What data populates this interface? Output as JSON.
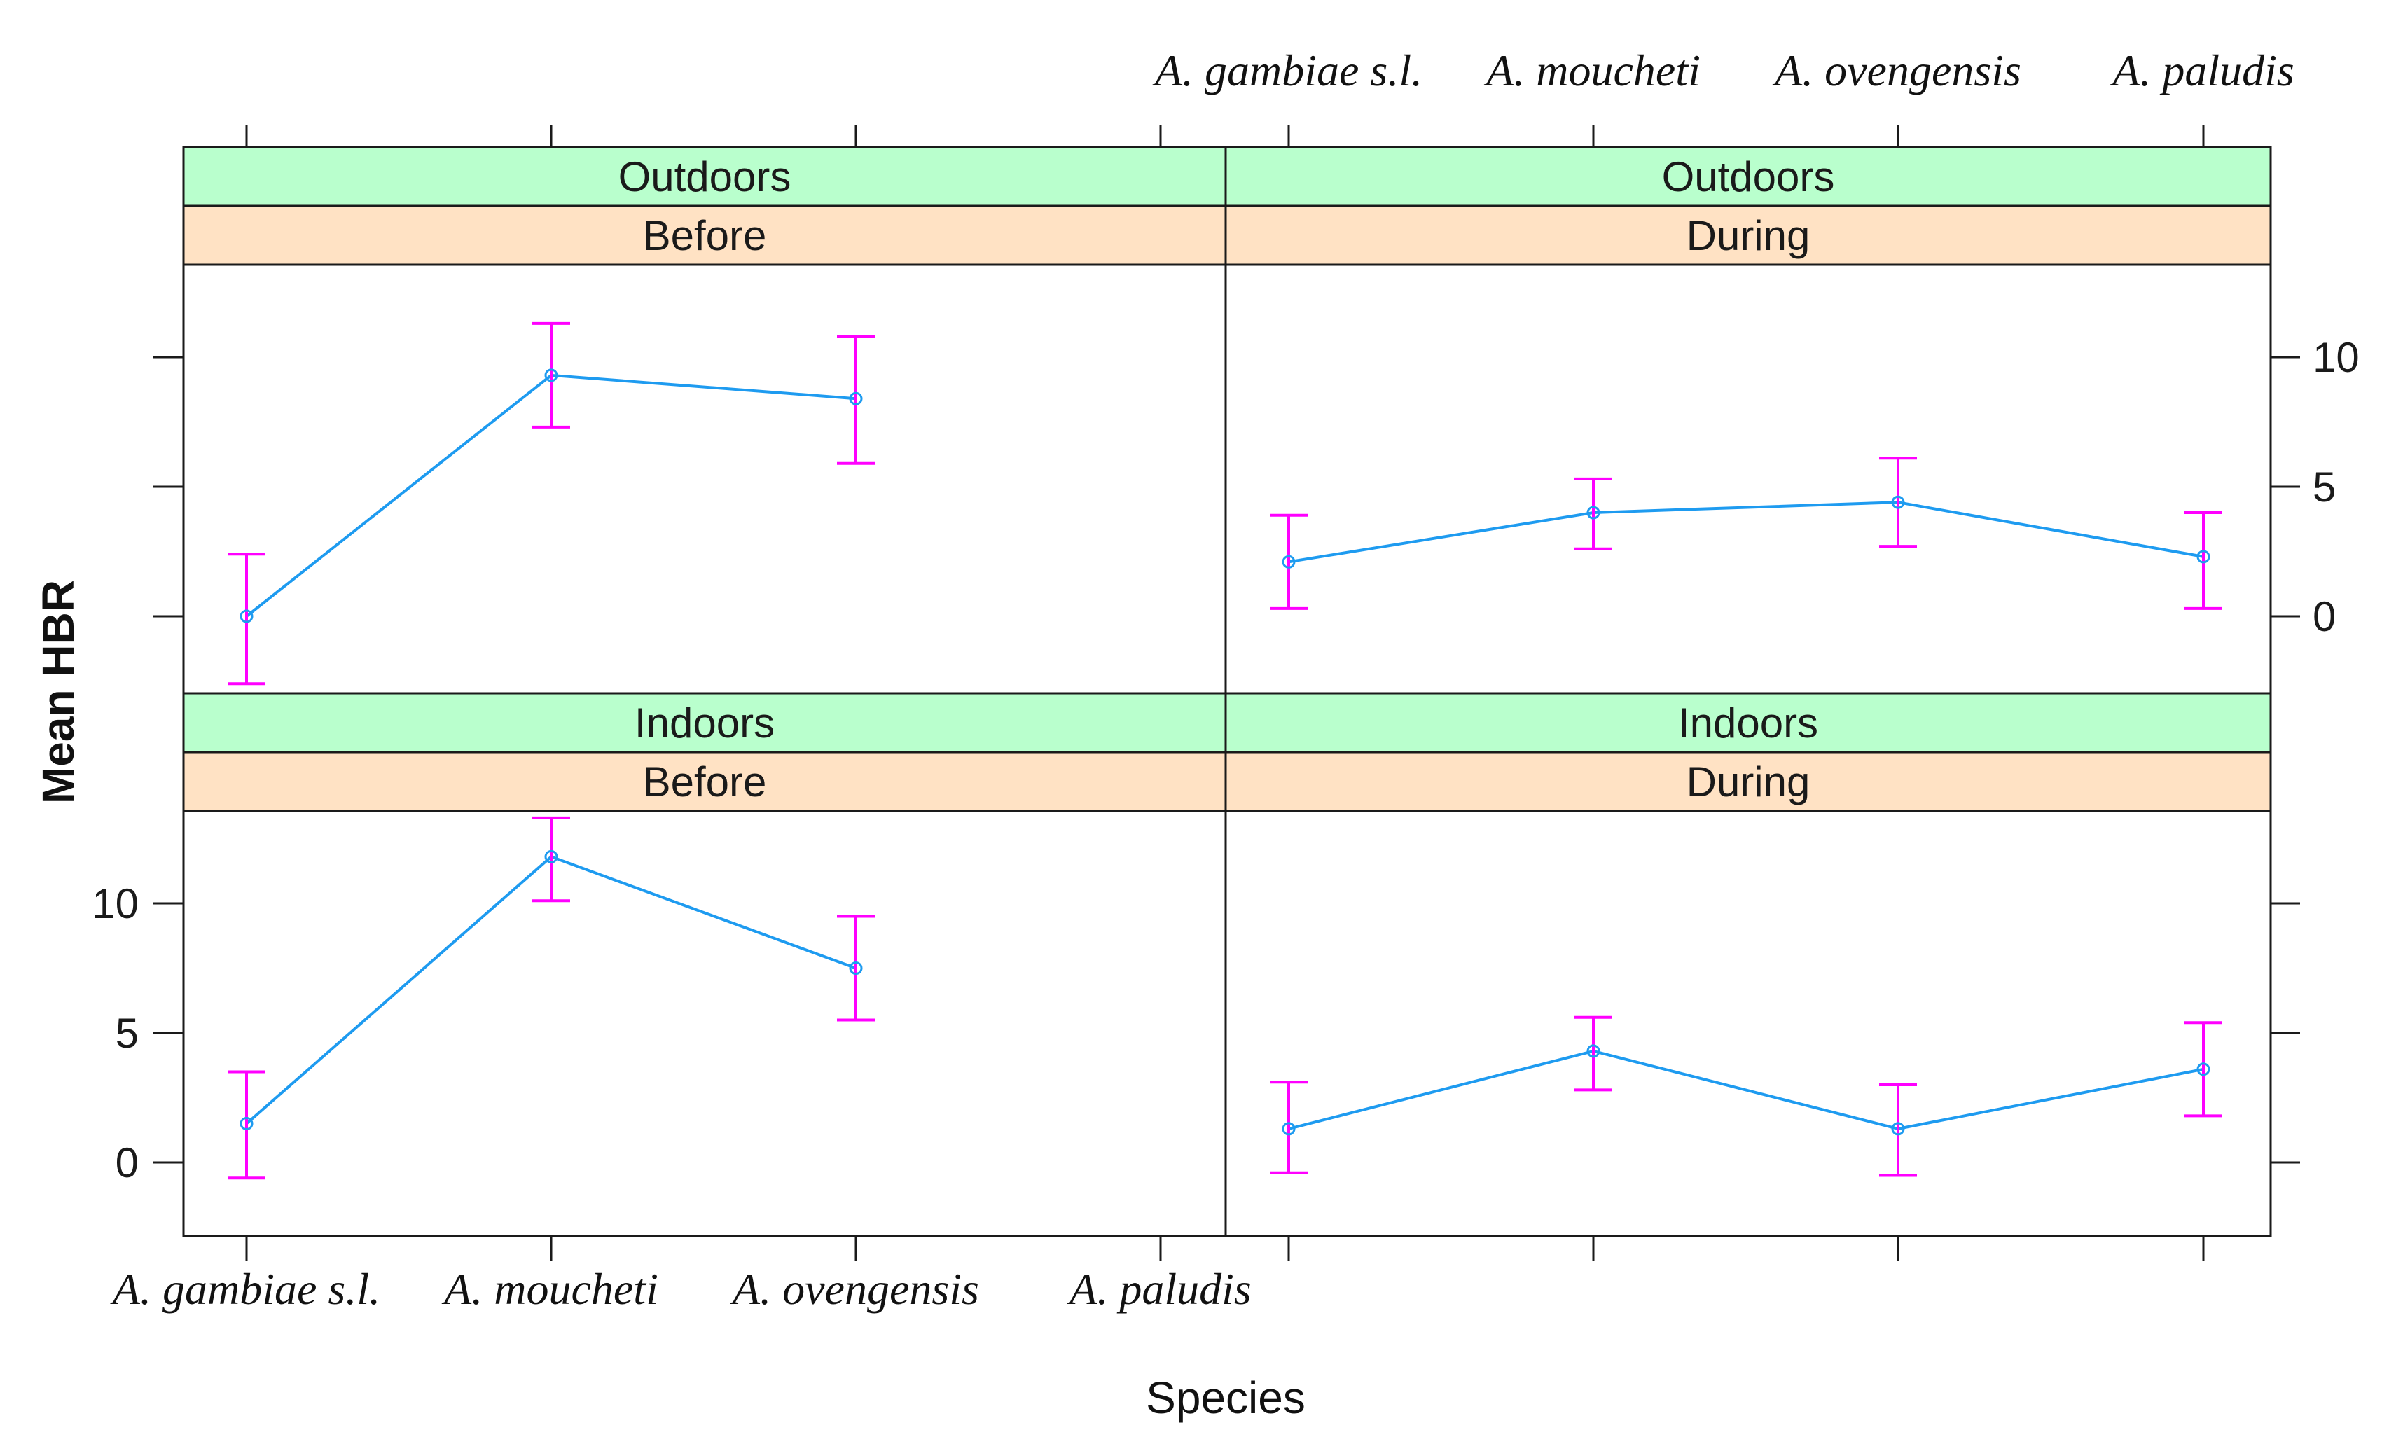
{
  "chart_data": {
    "type": "line",
    "title": "",
    "xlabel": "Species",
    "ylabel": "Mean HBR",
    "categories": [
      "A. gambiae s.l.",
      "A. moucheti",
      "A. ovengensis",
      "A. paludis"
    ],
    "ylim": [
      -3,
      13.5
    ],
    "yticks": [
      0,
      5,
      10
    ],
    "error_bars": true,
    "panels": [
      {
        "location": "Outdoors",
        "period": "Before",
        "means": [
          0.0,
          9.3,
          8.4,
          null
        ],
        "lower": [
          -2.6,
          7.3,
          5.9,
          null
        ],
        "upper": [
          2.4,
          11.3,
          10.8,
          null
        ]
      },
      {
        "location": "Outdoors",
        "period": "During",
        "means": [
          2.1,
          4.0,
          4.4,
          2.3
        ],
        "lower": [
          0.3,
          2.6,
          2.7,
          0.3
        ],
        "upper": [
          3.9,
          5.3,
          6.1,
          4.0
        ]
      },
      {
        "location": "Indoors",
        "period": "Before",
        "means": [
          1.5,
          11.8,
          7.5,
          null
        ],
        "lower": [
          -0.6,
          10.1,
          5.5,
          null
        ],
        "upper": [
          3.5,
          13.3,
          9.5,
          null
        ]
      },
      {
        "location": "Indoors",
        "period": "During",
        "means": [
          1.3,
          4.3,
          1.3,
          3.6
        ],
        "lower": [
          -0.4,
          2.8,
          -0.5,
          1.8
        ],
        "upper": [
          3.1,
          5.6,
          3.0,
          5.4
        ]
      }
    ],
    "colors": {
      "line": "#1e9bf0",
      "error_bar": "#ff00ff",
      "strip_location": "#b9ffcd",
      "strip_period": "#ffe2c4",
      "frame": "#1a1a1a"
    }
  }
}
